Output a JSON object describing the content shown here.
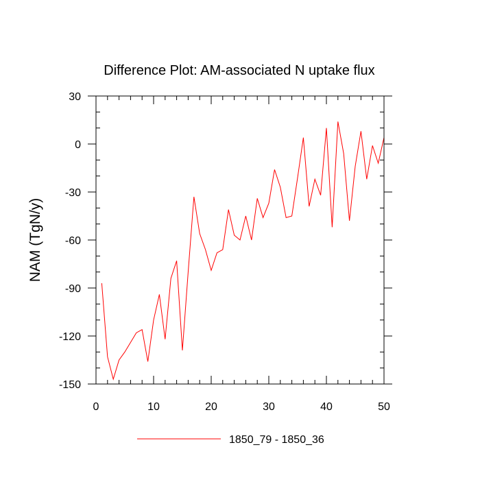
{
  "chart_data": {
    "type": "line",
    "title": "Difference Plot: AM-associated N uptake flux",
    "xlabel": "",
    "ylabel": "NAM  (TgN/y)",
    "xlim": [
      0,
      50
    ],
    "ylim": [
      -150,
      30
    ],
    "xticks": [
      0,
      10,
      20,
      30,
      40,
      50
    ],
    "yticks": [
      30,
      0,
      -30,
      -60,
      -90,
      -120,
      -150
    ],
    "xtick_labels": [
      "0",
      "10",
      "20",
      "30",
      "40",
      "50"
    ],
    "ytick_labels": [
      "30",
      "0",
      "-30",
      "-60",
      "-90",
      "-120",
      "-150"
    ],
    "x_minor_step": 2,
    "y_minor_step": 10,
    "series": [
      {
        "name": "1850_79 - 1850_36",
        "color": "#ff0000",
        "x": [
          1,
          2,
          3,
          4,
          5,
          6,
          7,
          8,
          9,
          10,
          11,
          12,
          13,
          14,
          15,
          16,
          17,
          18,
          19,
          20,
          21,
          22,
          23,
          24,
          25,
          26,
          27,
          28,
          29,
          30,
          31,
          32,
          33,
          34,
          35,
          36,
          37,
          38,
          39,
          40,
          41,
          42,
          43,
          44,
          45,
          46,
          47,
          48,
          49,
          50
        ],
        "y": [
          -87,
          -133,
          -147,
          -135,
          -130,
          -124,
          -118,
          -116,
          -136,
          -110,
          -94,
          -122,
          -84,
          -73,
          -129,
          -80,
          -33,
          -56,
          -66,
          -79,
          -68,
          -66,
          -41,
          -57,
          -60,
          -45,
          -60,
          -34,
          -46,
          -37,
          -16,
          -27,
          -46,
          -45,
          -21,
          4,
          -39,
          -22,
          -32,
          10,
          -52,
          14,
          -6,
          -48,
          -14,
          8,
          -22,
          -1,
          -12,
          4
        ]
      }
    ],
    "legend": {
      "position": "bottom-center",
      "entries": [
        "1850_79 - 1850_36"
      ]
    }
  }
}
